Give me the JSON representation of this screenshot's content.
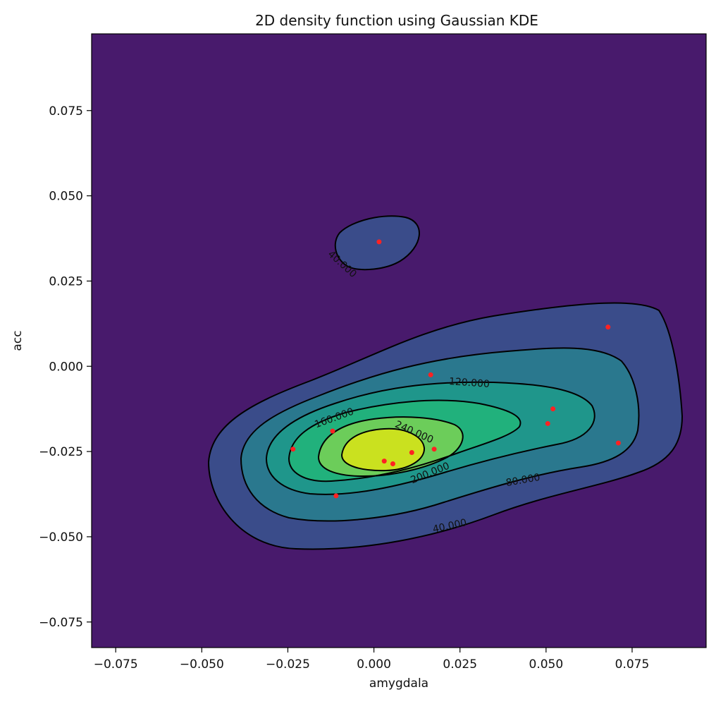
{
  "chart_data": {
    "type": "contour",
    "title": "2D density function using Gaussian KDE",
    "xlabel": "amygdala",
    "ylabel": "acc",
    "xlim": [
      -0.082,
      0.0965
    ],
    "ylim": [
      -0.0825,
      0.0975
    ],
    "xticks": [
      -0.075,
      -0.05,
      -0.025,
      0.0,
      0.025,
      0.05,
      0.075
    ],
    "yticks": [
      -0.075,
      -0.05,
      -0.025,
      0.0,
      0.025,
      0.05,
      0.075
    ],
    "xtick_labels": [
      "−0.075",
      "−0.050",
      "−0.025",
      "0.000",
      "0.025",
      "0.050",
      "0.075"
    ],
    "ytick_labels": [
      "−0.075",
      "−0.050",
      "−0.025",
      "0.000",
      "0.025",
      "0.050",
      "0.075"
    ],
    "grid": false,
    "colormap": "viridis",
    "contour_levels": [
      40,
      80,
      120,
      160,
      200,
      240
    ],
    "fill_colors": [
      "#481a6c",
      "#3a4c8a",
      "#2a788e",
      "#1f968b",
      "#21b17c",
      "#6ccd5a",
      "#cae11f"
    ],
    "contour_labels": [
      "40.000",
      "40.000",
      "80.000",
      "120.000",
      "160.000",
      "200.000",
      "240.000"
    ],
    "points_color": "#ff2222",
    "points": [
      {
        "x": 0.0015,
        "y": 0.0365
      },
      {
        "x": 0.068,
        "y": 0.0115
      },
      {
        "x": 0.0165,
        "y": -0.0025
      },
      {
        "x": 0.052,
        "y": -0.0125
      },
      {
        "x": 0.0505,
        "y": -0.0168
      },
      {
        "x": 0.071,
        "y": -0.0225
      },
      {
        "x": -0.012,
        "y": -0.019
      },
      {
        "x": -0.0235,
        "y": -0.0243
      },
      {
        "x": 0.0175,
        "y": -0.0243
      },
      {
        "x": 0.011,
        "y": -0.0253
      },
      {
        "x": 0.003,
        "y": -0.0278
      },
      {
        "x": 0.0055,
        "y": -0.0286
      },
      {
        "x": -0.011,
        "y": -0.038
      }
    ]
  }
}
